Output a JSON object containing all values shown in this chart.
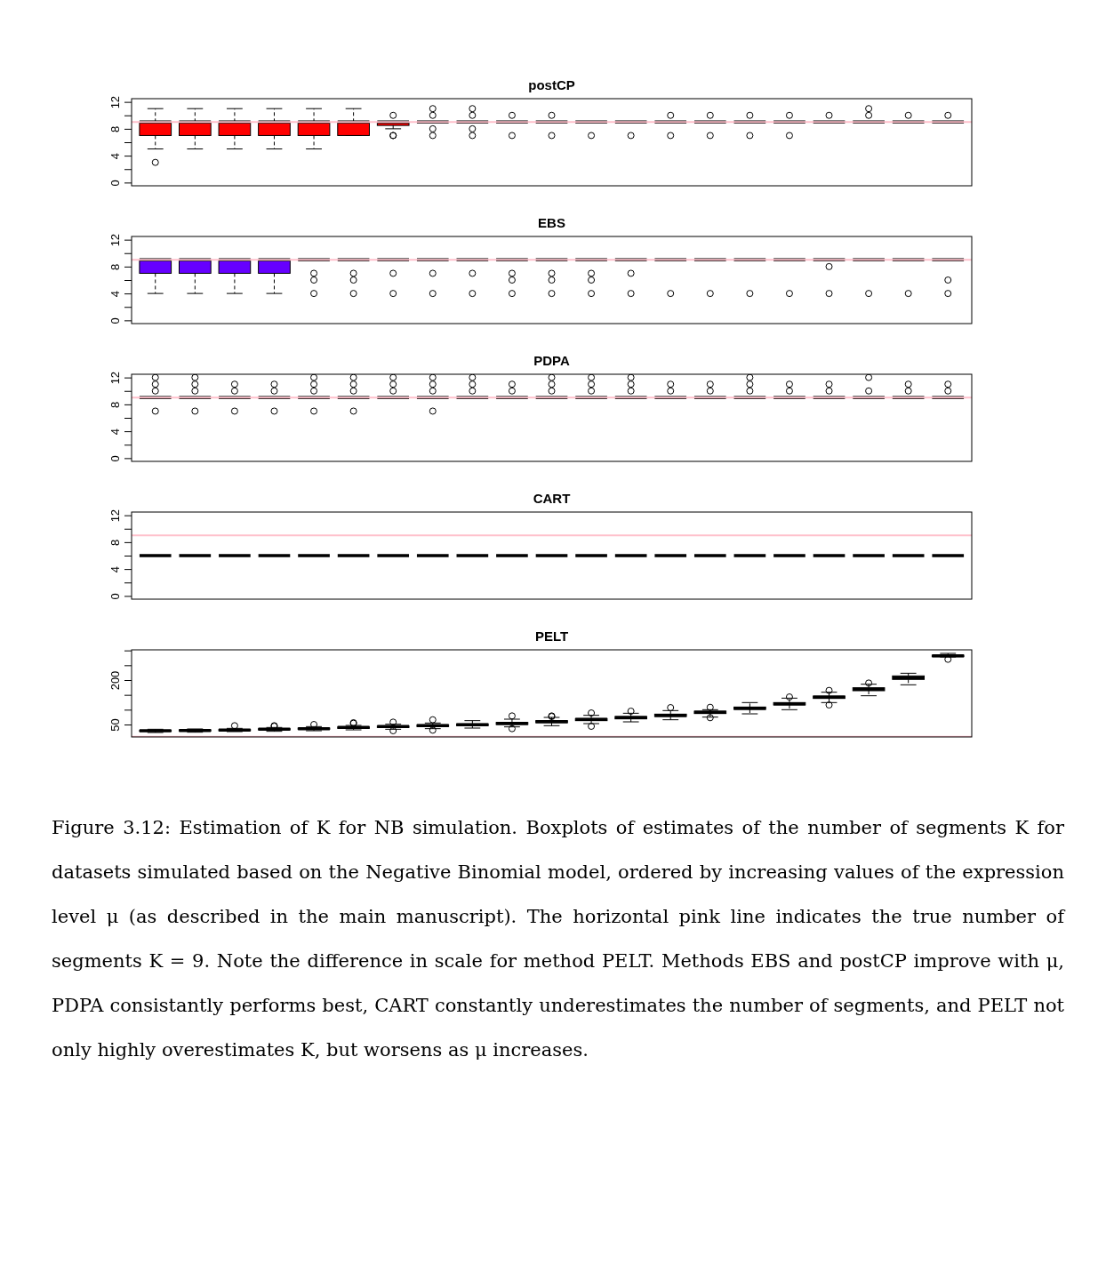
{
  "chart_data": [
    {
      "type": "box",
      "title": "postCP",
      "categories": [
        null,
        null,
        null,
        null,
        null,
        null,
        null,
        null,
        null,
        null,
        null,
        null,
        null,
        null,
        null,
        null,
        null,
        null,
        null,
        null,
        null
      ],
      "ylim": [
        -0.48,
        12.48
      ],
      "yticks": [
        0,
        {
          "value": 2,
          "label": null
        },
        4,
        {
          "value": 6,
          "label": null
        },
        8,
        {
          "value": 10,
          "label": null
        },
        12
      ],
      "tick_labels": "y",
      "ref_lines": [
        {
          "axis": "y",
          "value": 9,
          "color": "#ffc0cb"
        }
      ],
      "series": [
        {
          "colors": [
            "#ff0000",
            "#ff0000",
            "#ff0000",
            "#ff0000",
            "#ff0000",
            "#ff0000",
            "#ff0000",
            "#000000",
            "#000000",
            "#000000",
            "#000000",
            "#000000",
            "#000000",
            "#000000",
            "#000000",
            "#000000",
            "#000000",
            "#000000",
            "#000000",
            "#000000",
            "#000000"
          ],
          "boxes": [
            {
              "low": 5,
              "q1": 7,
              "median": 9,
              "q3": 9,
              "high": 11,
              "outliers": [
                3
              ]
            },
            {
              "low": 5,
              "q1": 7,
              "median": 9,
              "q3": 9,
              "high": 11
            },
            {
              "low": 5,
              "q1": 7,
              "median": 9,
              "q3": 9,
              "high": 11
            },
            {
              "low": 5,
              "q1": 7,
              "median": 9,
              "q3": 9,
              "high": 11
            },
            {
              "low": 5,
              "q1": 7,
              "median": 9,
              "q3": 9,
              "high": 11
            },
            {
              "low": 7,
              "q1": 7,
              "median": 9,
              "q3": 9,
              "high": 11
            },
            {
              "low": 8,
              "q1": 8.5,
              "median": 9,
              "q3": 9,
              "high": 9,
              "outliers": [
                10,
                7,
                7
              ]
            },
            {
              "low": 9,
              "q1": 9,
              "median": 9,
              "q3": 9,
              "high": 9,
              "outliers": [
                11,
                10,
                8,
                7
              ]
            },
            {
              "low": 9,
              "q1": 9,
              "median": 9,
              "q3": 9,
              "high": 9,
              "outliers": [
                11,
                10,
                8,
                7
              ]
            },
            {
              "low": 9,
              "q1": 9,
              "median": 9,
              "q3": 9,
              "high": 9,
              "outliers": [
                10,
                7
              ]
            },
            {
              "low": 9,
              "q1": 9,
              "median": 9,
              "q3": 9,
              "high": 9,
              "outliers": [
                10,
                7
              ]
            },
            {
              "low": 9,
              "q1": 9,
              "median": 9,
              "q3": 9,
              "high": 9,
              "outliers": [
                7
              ]
            },
            {
              "low": 9,
              "q1": 9,
              "median": 9,
              "q3": 9,
              "high": 9,
              "outliers": [
                7
              ]
            },
            {
              "low": 9,
              "q1": 9,
              "median": 9,
              "q3": 9,
              "high": 9,
              "outliers": [
                10,
                7
              ]
            },
            {
              "low": 9,
              "q1": 9,
              "median": 9,
              "q3": 9,
              "high": 9,
              "outliers": [
                10,
                7
              ]
            },
            {
              "low": 9,
              "q1": 9,
              "median": 9,
              "q3": 9,
              "high": 9,
              "outliers": [
                10,
                7
              ]
            },
            {
              "low": 9,
              "q1": 9,
              "median": 9,
              "q3": 9,
              "high": 9,
              "outliers": [
                10,
                7
              ]
            },
            {
              "low": 9,
              "q1": 9,
              "median": 9,
              "q3": 9,
              "high": 9,
              "outliers": [
                10
              ]
            },
            {
              "low": 9,
              "q1": 9,
              "median": 9,
              "q3": 9,
              "high": 9,
              "outliers": [
                11,
                10
              ]
            },
            {
              "low": 9,
              "q1": 9,
              "median": 9,
              "q3": 9,
              "high": 9,
              "outliers": [
                10
              ]
            },
            {
              "low": 9,
              "q1": 9,
              "median": 9,
              "q3": 9,
              "high": 9,
              "outliers": [
                10
              ]
            }
          ]
        }
      ]
    },
    {
      "type": "box",
      "title": "EBS",
      "categories": [
        null,
        null,
        null,
        null,
        null,
        null,
        null,
        null,
        null,
        null,
        null,
        null,
        null,
        null,
        null,
        null,
        null,
        null,
        null,
        null,
        null
      ],
      "ylim": [
        -0.48,
        12.48
      ],
      "yticks": [
        0,
        {
          "value": 2,
          "label": null
        },
        4,
        {
          "value": 6,
          "label": null
        },
        8,
        {
          "value": 10,
          "label": null
        },
        12
      ],
      "tick_labels": "y",
      "ref_lines": [
        {
          "axis": "y",
          "value": 9,
          "color": "#ffc0cb"
        }
      ],
      "series": [
        {
          "colors": [
            "#6600ff",
            "#6600ff",
            "#6600ff",
            "#6600ff",
            "#000000",
            "#000000",
            "#000000",
            "#000000",
            "#000000",
            "#000000",
            "#000000",
            "#000000",
            "#000000",
            "#000000",
            "#000000",
            "#000000",
            "#000000",
            "#000000",
            "#000000",
            "#000000",
            "#000000"
          ],
          "boxes": [
            {
              "low": 4,
              "q1": 7,
              "median": 9,
              "q3": 9,
              "high": 9
            },
            {
              "low": 4,
              "q1": 7,
              "median": 9,
              "q3": 9,
              "high": 9
            },
            {
              "low": 4,
              "q1": 7,
              "median": 9,
              "q3": 9,
              "high": 9
            },
            {
              "low": 4,
              "q1": 7,
              "median": 9,
              "q3": 9,
              "high": 9
            },
            {
              "low": 9,
              "q1": 9,
              "median": 9,
              "q3": 9,
              "high": 9,
              "outliers": [
                7,
                6,
                4
              ]
            },
            {
              "low": 9,
              "q1": 9,
              "median": 9,
              "q3": 9,
              "high": 9,
              "outliers": [
                7,
                6,
                4
              ]
            },
            {
              "low": 9,
              "q1": 9,
              "median": 9,
              "q3": 9,
              "high": 9,
              "outliers": [
                7,
                4
              ]
            },
            {
              "low": 9,
              "q1": 9,
              "median": 9,
              "q3": 9,
              "high": 9,
              "outliers": [
                7,
                4
              ]
            },
            {
              "low": 9,
              "q1": 9,
              "median": 9,
              "q3": 9,
              "high": 9,
              "outliers": [
                7,
                4
              ]
            },
            {
              "low": 9,
              "q1": 9,
              "median": 9,
              "q3": 9,
              "high": 9,
              "outliers": [
                7,
                6,
                4
              ]
            },
            {
              "low": 9,
              "q1": 9,
              "median": 9,
              "q3": 9,
              "high": 9,
              "outliers": [
                7,
                6,
                4
              ]
            },
            {
              "low": 9,
              "q1": 9,
              "median": 9,
              "q3": 9,
              "high": 9,
              "outliers": [
                7,
                6,
                4
              ]
            },
            {
              "low": 9,
              "q1": 9,
              "median": 9,
              "q3": 9,
              "high": 9,
              "outliers": [
                7,
                4
              ]
            },
            {
              "low": 9,
              "q1": 9,
              "median": 9,
              "q3": 9,
              "high": 9,
              "outliers": [
                4
              ]
            },
            {
              "low": 9,
              "q1": 9,
              "median": 9,
              "q3": 9,
              "high": 9,
              "outliers": [
                4
              ]
            },
            {
              "low": 9,
              "q1": 9,
              "median": 9,
              "q3": 9,
              "high": 9,
              "outliers": [
                4
              ]
            },
            {
              "low": 9,
              "q1": 9,
              "median": 9,
              "q3": 9,
              "high": 9,
              "outliers": [
                4
              ]
            },
            {
              "low": 9,
              "q1": 9,
              "median": 9,
              "q3": 9,
              "high": 9,
              "outliers": [
                8,
                4
              ]
            },
            {
              "low": 9,
              "q1": 9,
              "median": 9,
              "q3": 9,
              "high": 9,
              "outliers": [
                4
              ]
            },
            {
              "low": 9,
              "q1": 9,
              "median": 9,
              "q3": 9,
              "high": 9,
              "outliers": [
                4
              ]
            },
            {
              "low": 9,
              "q1": 9,
              "median": 9,
              "q3": 9,
              "high": 9,
              "outliers": [
                6,
                4
              ]
            }
          ]
        }
      ]
    },
    {
      "type": "box",
      "title": "PDPA",
      "categories": [
        null,
        null,
        null,
        null,
        null,
        null,
        null,
        null,
        null,
        null,
        null,
        null,
        null,
        null,
        null,
        null,
        null,
        null,
        null,
        null,
        null
      ],
      "ylim": [
        -0.48,
        12.48
      ],
      "yticks": [
        0,
        {
          "value": 2,
          "label": null
        },
        4,
        {
          "value": 6,
          "label": null
        },
        8,
        {
          "value": 10,
          "label": null
        },
        12
      ],
      "tick_labels": "y",
      "ref_lines": [
        {
          "axis": "y",
          "value": 9,
          "color": "#ffc0cb"
        }
      ],
      "series": [
        {
          "boxes": [
            {
              "low": 9,
              "q1": 9,
              "median": 9,
              "q3": 9,
              "high": 9,
              "outliers": [
                12,
                11,
                10,
                7
              ]
            },
            {
              "low": 9,
              "q1": 9,
              "median": 9,
              "q3": 9,
              "high": 9,
              "outliers": [
                12,
                11,
                10,
                7
              ]
            },
            {
              "low": 9,
              "q1": 9,
              "median": 9,
              "q3": 9,
              "high": 9,
              "outliers": [
                11,
                10,
                7
              ]
            },
            {
              "low": 9,
              "q1": 9,
              "median": 9,
              "q3": 9,
              "high": 9,
              "outliers": [
                11,
                10,
                7
              ]
            },
            {
              "low": 9,
              "q1": 9,
              "median": 9,
              "q3": 9,
              "high": 9,
              "outliers": [
                12,
                11,
                10,
                7
              ]
            },
            {
              "low": 9,
              "q1": 9,
              "median": 9,
              "q3": 9,
              "high": 9,
              "outliers": [
                12,
                11,
                10,
                7
              ]
            },
            {
              "low": 9,
              "q1": 9,
              "median": 9,
              "q3": 9,
              "high": 9,
              "outliers": [
                12,
                11,
                10
              ]
            },
            {
              "low": 9,
              "q1": 9,
              "median": 9,
              "q3": 9,
              "high": 9,
              "outliers": [
                12,
                11,
                10,
                7
              ]
            },
            {
              "low": 9,
              "q1": 9,
              "median": 9,
              "q3": 9,
              "high": 9,
              "outliers": [
                12,
                11,
                10
              ]
            },
            {
              "low": 9,
              "q1": 9,
              "median": 9,
              "q3": 9,
              "high": 9,
              "outliers": [
                11,
                10
              ]
            },
            {
              "low": 9,
              "q1": 9,
              "median": 9,
              "q3": 9,
              "high": 9,
              "outliers": [
                12,
                11,
                10
              ]
            },
            {
              "low": 9,
              "q1": 9,
              "median": 9,
              "q3": 9,
              "high": 9,
              "outliers": [
                12,
                11,
                10
              ]
            },
            {
              "low": 9,
              "q1": 9,
              "median": 9,
              "q3": 9,
              "high": 9,
              "outliers": [
                12,
                11,
                10
              ]
            },
            {
              "low": 9,
              "q1": 9,
              "median": 9,
              "q3": 9,
              "high": 9,
              "outliers": [
                11,
                10
              ]
            },
            {
              "low": 9,
              "q1": 9,
              "median": 9,
              "q3": 9,
              "high": 9,
              "outliers": [
                11,
                10
              ]
            },
            {
              "low": 9,
              "q1": 9,
              "median": 9,
              "q3": 9,
              "high": 9,
              "outliers": [
                12,
                11,
                10
              ]
            },
            {
              "low": 9,
              "q1": 9,
              "median": 9,
              "q3": 9,
              "high": 9,
              "outliers": [
                11,
                10
              ]
            },
            {
              "low": 9,
              "q1": 9,
              "median": 9,
              "q3": 9,
              "high": 9,
              "outliers": [
                11,
                10
              ]
            },
            {
              "low": 9,
              "q1": 9,
              "median": 9,
              "q3": 9,
              "high": 9,
              "outliers": [
                12,
                10
              ]
            },
            {
              "low": 9,
              "q1": 9,
              "median": 9,
              "q3": 9,
              "high": 9,
              "outliers": [
                11,
                10
              ]
            },
            {
              "low": 9,
              "q1": 9,
              "median": 9,
              "q3": 9,
              "high": 9,
              "outliers": [
                11,
                10
              ]
            }
          ]
        }
      ]
    },
    {
      "type": "box",
      "title": "CART",
      "categories": [
        null,
        null,
        null,
        null,
        null,
        null,
        null,
        null,
        null,
        null,
        null,
        null,
        null,
        null,
        null,
        null,
        null,
        null,
        null,
        null,
        null
      ],
      "ylim": [
        -0.48,
        12.48
      ],
      "yticks": [
        0,
        {
          "value": 2,
          "label": null
        },
        4,
        {
          "value": 6,
          "label": null
        },
        8,
        {
          "value": 10,
          "label": null
        },
        12
      ],
      "tick_labels": "y",
      "ref_lines": [
        {
          "axis": "y",
          "value": 9,
          "color": "#ffc0cb"
        }
      ],
      "series": [
        {
          "boxes": [
            {
              "low": 6,
              "q1": 6,
              "median": 6,
              "q3": 6,
              "high": 6
            },
            {
              "low": 6,
              "q1": 6,
              "median": 6,
              "q3": 6,
              "high": 6
            },
            {
              "low": 6,
              "q1": 6,
              "median": 6,
              "q3": 6,
              "high": 6
            },
            {
              "low": 6,
              "q1": 6,
              "median": 6,
              "q3": 6,
              "high": 6
            },
            {
              "low": 6,
              "q1": 6,
              "median": 6,
              "q3": 6,
              "high": 6
            },
            {
              "low": 6,
              "q1": 6,
              "median": 6,
              "q3": 6,
              "high": 6
            },
            {
              "low": 6,
              "q1": 6,
              "median": 6,
              "q3": 6,
              "high": 6
            },
            {
              "low": 6,
              "q1": 6,
              "median": 6,
              "q3": 6,
              "high": 6
            },
            {
              "low": 6,
              "q1": 6,
              "median": 6,
              "q3": 6,
              "high": 6
            },
            {
              "low": 6,
              "q1": 6,
              "median": 6,
              "q3": 6,
              "high": 6
            },
            {
              "low": 6,
              "q1": 6,
              "median": 6,
              "q3": 6,
              "high": 6
            },
            {
              "low": 6,
              "q1": 6,
              "median": 6,
              "q3": 6,
              "high": 6
            },
            {
              "low": 6,
              "q1": 6,
              "median": 6,
              "q3": 6,
              "high": 6
            },
            {
              "low": 6,
              "q1": 6,
              "median": 6,
              "q3": 6,
              "high": 6
            },
            {
              "low": 6,
              "q1": 6,
              "median": 6,
              "q3": 6,
              "high": 6
            },
            {
              "low": 6,
              "q1": 6,
              "median": 6,
              "q3": 6,
              "high": 6
            },
            {
              "low": 6,
              "q1": 6,
              "median": 6,
              "q3": 6,
              "high": 6
            },
            {
              "low": 6,
              "q1": 6,
              "median": 6,
              "q3": 6,
              "high": 6
            },
            {
              "low": 6,
              "q1": 6,
              "median": 6,
              "q3": 6,
              "high": 6
            },
            {
              "low": 6,
              "q1": 6,
              "median": 6,
              "q3": 6,
              "high": 6
            },
            {
              "low": 6,
              "q1": 6,
              "median": 6,
              "q3": 6,
              "high": 6
            }
          ]
        }
      ]
    },
    {
      "type": "box",
      "title": "PELT",
      "categories": [
        null,
        null,
        null,
        null,
        null,
        null,
        null,
        null,
        null,
        null,
        null,
        null,
        null,
        null,
        null,
        null,
        null,
        null,
        null,
        null,
        null
      ],
      "ylim": [
        8,
        302
      ],
      "yticks": [
        50,
        {
          "value": 100,
          "label": null
        },
        {
          "value": 150,
          "label": null
        },
        200,
        {
          "value": 250,
          "label": null
        },
        {
          "value": 300,
          "label": null
        }
      ],
      "tick_labels": "y",
      "ref_lines": [
        {
          "axis": "y",
          "value": 9,
          "color": "#ffc0cb"
        }
      ],
      "annotations": [
        "Figure 3.12: Estimation of K for NB simulation. Boxplots of estimates of the number of segments K for datasets simulated based on the Negative Binomial model, ordered by increasing values of the expression level μ (as described in the main manuscript). The horizontal pink line indicates the true number of segments K = 9. Note the difference in scale for method PELT. Methods EBS and postCP improve with μ, PDPA consistantly performs best, CART constantly underestimates the number of segments, and PELT not only highly overestimates K, but worsens as μ increases."
      ],
      "series": [
        {
          "boxes": [
            {
              "low": 23,
              "q1": 27,
              "median": 29,
              "q3": 30,
              "high": 34
            },
            {
              "low": 24,
              "q1": 28,
              "median": 30,
              "q3": 32,
              "high": 35
            },
            {
              "low": 26,
              "q1": 29,
              "median": 31,
              "q3": 33,
              "high": 37,
              "outliers": [
                46
              ]
            },
            {
              "low": 27,
              "q1": 32,
              "median": 34,
              "q3": 36,
              "high": 40,
              "outliers": [
                46,
                44
              ]
            },
            {
              "low": 29,
              "q1": 34,
              "median": 36,
              "q3": 38,
              "high": 43,
              "outliers": [
                50
              ]
            },
            {
              "low": 32,
              "q1": 37,
              "median": 40,
              "q3": 42,
              "high": 47,
              "outliers": [
                56,
                54
              ]
            },
            {
              "low": 34,
              "q1": 40,
              "median": 43,
              "q3": 45,
              "high": 51,
              "outliers": [
                58,
                29
              ]
            },
            {
              "low": 36,
              "q1": 43,
              "median": 46,
              "q3": 49,
              "high": 55,
              "outliers": [
                66,
                31
              ]
            },
            {
              "low": 38,
              "q1": 46,
              "median": 49,
              "q3": 52,
              "high": 63
            },
            {
              "low": 42,
              "q1": 50,
              "median": 54,
              "q3": 57,
              "high": 68,
              "outliers": [
                79,
                36
              ]
            },
            {
              "low": 46,
              "q1": 56,
              "median": 60,
              "q3": 63,
              "high": 74,
              "outliers": [
                79,
                77
              ]
            },
            {
              "low": 53,
              "q1": 63,
              "median": 67,
              "q3": 70,
              "high": 81,
              "outliers": [
                89,
                44
              ]
            },
            {
              "low": 59,
              "q1": 69,
              "median": 73,
              "q3": 77,
              "high": 88,
              "outliers": [
                95
              ]
            },
            {
              "low": 66,
              "q1": 77,
              "median": 81,
              "q3": 85,
              "high": 97,
              "outliers": [
                107
              ]
            },
            {
              "low": 75,
              "q1": 87,
              "median": 91,
              "q3": 95,
              "high": 100,
              "outliers": [
                108,
                73
              ]
            },
            {
              "low": 86,
              "q1": 101,
              "median": 105,
              "q3": 109,
              "high": 124
            },
            {
              "low": 100,
              "q1": 116,
              "median": 120,
              "q3": 124,
              "high": 139,
              "outliers": [
                143
              ]
            },
            {
              "low": 124,
              "q1": 138,
              "median": 142,
              "q3": 146,
              "high": 159,
              "outliers": [
                165,
                116
              ]
            },
            {
              "low": 147,
              "q1": 164,
              "median": 169,
              "q3": 174,
              "high": 186,
              "outliers": [
                190
              ]
            },
            {
              "low": 184,
              "q1": 202,
              "median": 208,
              "q3": 214,
              "high": 223
            },
            {
              "low": 278,
              "q1": 279,
              "median": 282,
              "q3": 284,
              "high": 290,
              "outliers": [
                270
              ]
            }
          ]
        }
      ]
    }
  ]
}
